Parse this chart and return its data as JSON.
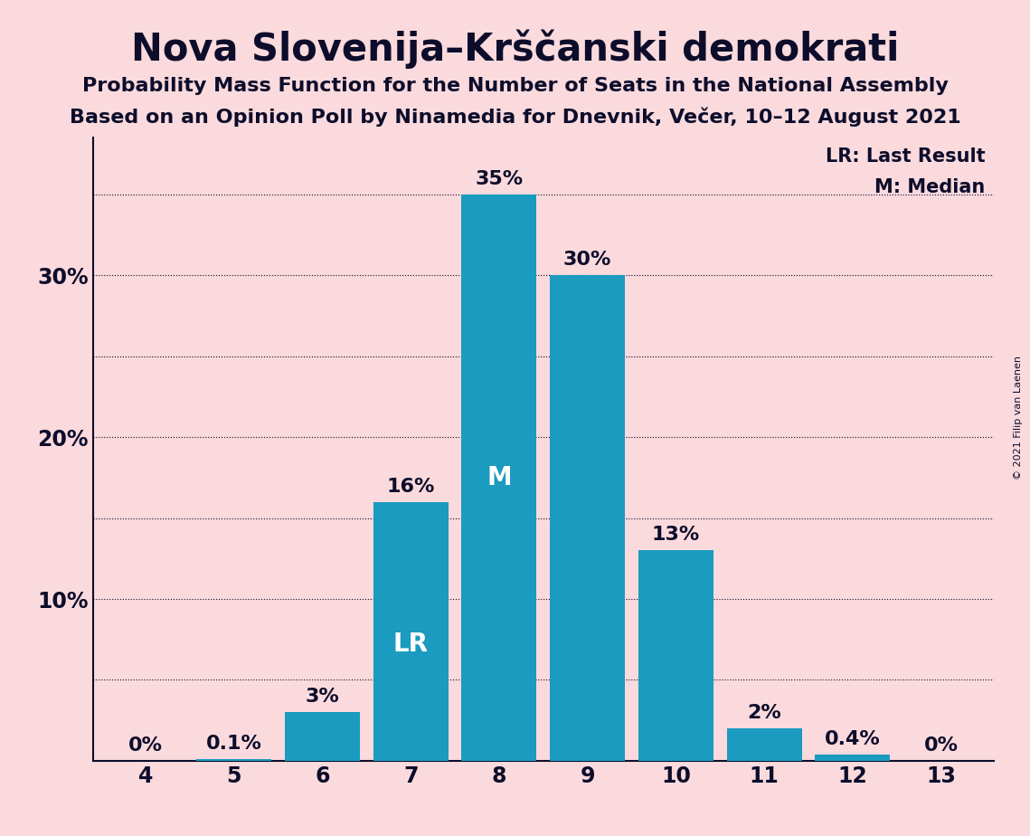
{
  "title": "Nova Slovenija–Krščanski demokrati",
  "subtitle1": "Probability Mass Function for the Number of Seats in the National Assembly",
  "subtitle2": "Based on an Opinion Poll by Ninamedia for Dnevnik, Večer, 10–12 August 2021",
  "copyright": "© 2021 Filip van Laenen",
  "categories": [
    4,
    5,
    6,
    7,
    8,
    9,
    10,
    11,
    12,
    13
  ],
  "values": [
    0.0,
    0.001,
    0.03,
    0.16,
    0.35,
    0.3,
    0.13,
    0.02,
    0.004,
    0.0
  ],
  "labels": [
    "0%",
    "0.1%",
    "3%",
    "16%",
    "35%",
    "30%",
    "13%",
    "2%",
    "0.4%",
    "0%"
  ],
  "bar_color": "#1a9bbf",
  "background_color": "#fadadd",
  "text_color": "#0d0d2b",
  "lr_seat": 7,
  "median_seat": 8,
  "ylim": [
    0,
    0.385
  ],
  "yticks_labeled": [
    0.1,
    0.2,
    0.3
  ],
  "yticks_labeled_str": [
    "10%",
    "20%",
    "30%"
  ],
  "yticks_grid": [
    0.05,
    0.1,
    0.15,
    0.2,
    0.25,
    0.3,
    0.35
  ],
  "legend_lr": "LR: Last Result",
  "legend_m": "M: Median",
  "grid_color": "#0d0d2b",
  "title_fontsize": 30,
  "subtitle_fontsize": 16,
  "label_fontsize": 16,
  "tick_fontsize": 17,
  "legend_fontsize": 15,
  "inbar_fontsize": 20
}
